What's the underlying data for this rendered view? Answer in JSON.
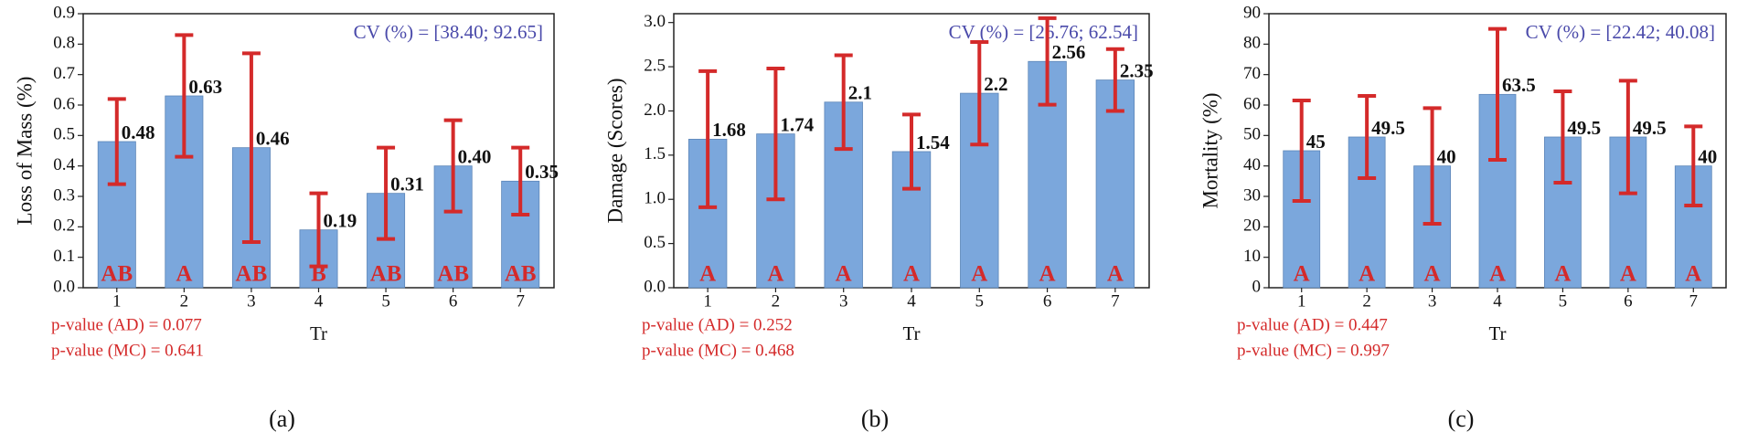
{
  "chart_data": [
    {
      "type": "bar",
      "panel_label": "(a)",
      "ylabel": "Loss of Mass (%)",
      "xlabel": "Tr",
      "cv": "CV (%) = [38.40; 92.65]",
      "categories": [
        "1",
        "2",
        "3",
        "4",
        "5",
        "6",
        "7"
      ],
      "values": [
        0.48,
        0.63,
        0.46,
        0.19,
        0.31,
        0.4,
        0.35
      ],
      "value_labels": [
        "0.48",
        "0.63",
        "0.46",
        "0.19",
        "0.31",
        "0.40",
        "0.35"
      ],
      "errors": [
        0.14,
        0.2,
        0.31,
        0.12,
        0.15,
        0.15,
        0.11
      ],
      "letters": [
        "AB",
        "A",
        "AB",
        "B",
        "AB",
        "AB",
        "AB"
      ],
      "annotations": [
        "p-value (AD) = 0.077",
        "p-value (MC) = 0.641"
      ],
      "color": "#7ba7dc",
      "error_color": "#d42a2a",
      "ylim": [
        0,
        0.9
      ],
      "yticks": [
        {
          "value": 0,
          "label": "0.0"
        },
        0.1,
        0.2,
        0.3,
        0.4,
        0.5,
        0.6,
        0.7,
        0.8,
        0.9
      ]
    },
    {
      "type": "bar",
      "panel_label": "(b)",
      "ylabel": "Damage (Scores)",
      "xlabel": "Tr",
      "cv": "CV (%) = [26.76; 62.54]",
      "categories": [
        "1",
        "2",
        "3",
        "4",
        "5",
        "6",
        "7"
      ],
      "values": [
        1.68,
        1.74,
        2.1,
        1.54,
        2.2,
        2.56,
        2.35
      ],
      "errors": [
        0.77,
        0.74,
        0.53,
        0.42,
        0.58,
        0.49,
        0.35
      ],
      "letters": [
        "A",
        "A",
        "A",
        "A",
        "A",
        "A",
        "A"
      ],
      "annotations": [
        "p-value (AD) = 0.252",
        "p-value (MC) = 0.468"
      ],
      "color": "#7ba7dc",
      "error_color": "#d42a2a",
      "ylim": [
        0,
        3.1
      ],
      "yticks": [
        {
          "value": 0,
          "label": "0.0"
        },
        0.5,
        {
          "value": 1,
          "label": "1.0"
        },
        1.5,
        {
          "value": 2,
          "label": "2.0"
        },
        2.5,
        {
          "value": 3,
          "label": "3.0"
        }
      ]
    },
    {
      "type": "bar",
      "panel_label": "(c)",
      "ylabel": "Mortality (%)",
      "xlabel": "Tr",
      "cv": "CV (%) = [22.42; 40.08]",
      "categories": [
        "1",
        "2",
        "3",
        "4",
        "5",
        "6",
        "7"
      ],
      "values": [
        45,
        49.5,
        40,
        63.5,
        49.5,
        49.5,
        40
      ],
      "errors": [
        16.5,
        13.5,
        19,
        21.5,
        15,
        18.5,
        13
      ],
      "letters": [
        "A",
        "A",
        "A",
        "A",
        "A",
        "A",
        "A"
      ],
      "annotations": [
        "p-value (AD) = 0.447",
        "p-value (MC) = 0.997"
      ],
      "color": "#7ba7dc",
      "error_color": "#d42a2a",
      "ylim": [
        0,
        90
      ],
      "yticks": [
        0,
        10,
        20,
        30,
        40,
        50,
        60,
        70,
        80,
        90
      ]
    }
  ]
}
